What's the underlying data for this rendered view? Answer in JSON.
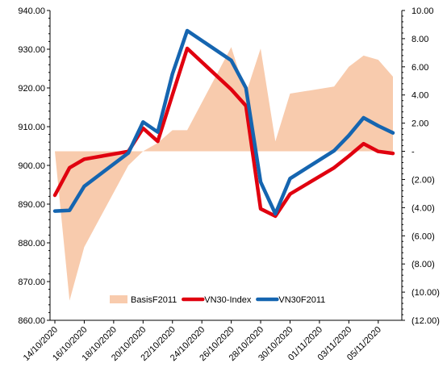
{
  "chart_data": {
    "type": "line",
    "x": [
      "14/10/2020",
      "15/10/2020",
      "16/10/2020",
      "19/10/2020",
      "20/10/2020",
      "21/10/2020",
      "22/10/2020",
      "23/10/2020",
      "26/10/2020",
      "27/10/2020",
      "28/10/2020",
      "29/10/2020",
      "30/10/2020",
      "02/11/2020",
      "03/11/2020",
      "04/11/2020",
      "05/11/2020",
      "06/11/2020"
    ],
    "x_tick_labels": [
      "14/10/2020",
      "16/10/2020",
      "18/10/2020",
      "20/10/2020",
      "22/10/2020",
      "24/10/2020",
      "26/10/2020",
      "28/10/2020",
      "30/10/2020",
      "01/11/2020",
      "03/11/2020",
      "05/11/2020"
    ],
    "x_tick_dates": [
      "14/10/2020",
      "16/10/2020",
      "18/10/2020",
      "20/10/2020",
      "22/10/2020",
      "24/10/2020",
      "26/10/2020",
      "28/10/2020",
      "30/10/2020",
      "01/11/2020",
      "03/11/2020",
      "05/11/2020"
    ],
    "y_left": {
      "min": 860,
      "max": 940,
      "step": 10,
      "tick_labels": [
        "860.00",
        "870.00",
        "880.00",
        "890.00",
        "900.00",
        "910.00",
        "920.00",
        "930.00",
        "940.00"
      ]
    },
    "y_right": {
      "min": -12,
      "max": 10,
      "step": 2,
      "tick_labels": [
        "(12.00)",
        "(10.00)",
        "(8.00)",
        "(6.00)",
        "(4.00)",
        "(2.00)",
        "-",
        "2.00",
        "4.00",
        "6.00",
        "8.00",
        "10.00"
      ]
    },
    "series": [
      {
        "name": "BasisF2011",
        "type": "area",
        "axis": "right",
        "color": "#f8cbad",
        "values": [
          0,
          -10.6,
          -6.8,
          -1,
          0,
          0.6,
          1.5,
          1.5,
          7.4,
          4.1,
          7.3,
          0.7,
          4.1,
          4.6,
          6,
          6.8,
          6.5,
          5.3
        ]
      },
      {
        "name": "VN30-Index",
        "type": "line",
        "axis": "left",
        "color": "#e0000f",
        "values": [
          892.3,
          899.4,
          901.6,
          903.6,
          909.6,
          906.2,
          918.2,
          930.2,
          919.6,
          915.4,
          888.8,
          886.9,
          892.6,
          899.4,
          902.4,
          905.6,
          903.6,
          903.1
        ]
      },
      {
        "name": "VN30F2011",
        "type": "line",
        "axis": "left",
        "color": "#1565b0",
        "values": [
          888.2,
          888.4,
          894.6,
          903.2,
          911.2,
          908.6,
          923.6,
          934.8,
          927.1,
          920.0,
          895.7,
          887.5,
          896.6,
          903.8,
          907.7,
          912.3,
          910.2,
          908.4
        ]
      }
    ],
    "legend": {
      "position": "bottom-inside",
      "entries": [
        "BasisF2011",
        "VN30-Index",
        "VN30F2011"
      ]
    },
    "grid": false,
    "title": "",
    "xlabel": "",
    "ylabel": ""
  }
}
